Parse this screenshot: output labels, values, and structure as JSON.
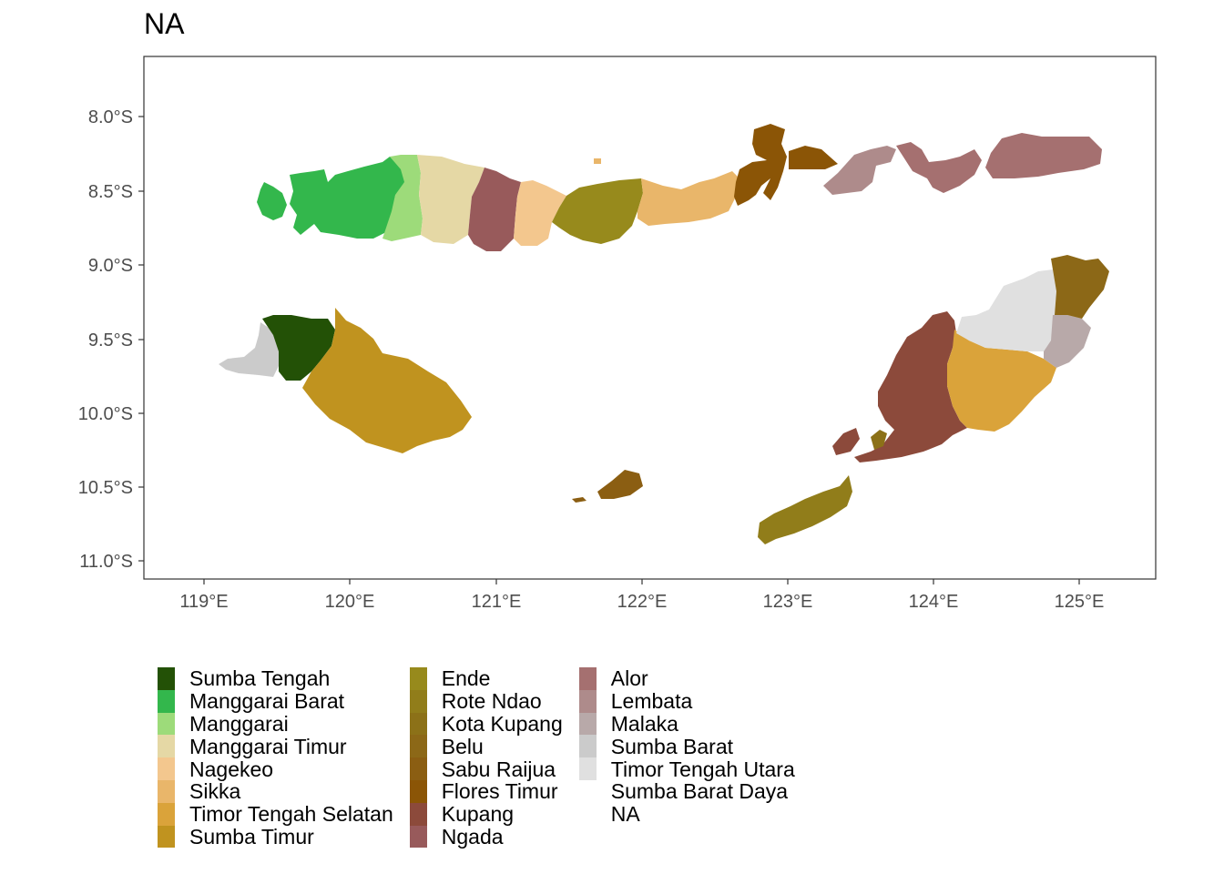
{
  "title": "NA",
  "axes": {
    "x_ticks": [
      "119°E",
      "120°E",
      "121°E",
      "122°E",
      "123°E",
      "124°E",
      "125°E"
    ],
    "y_ticks": [
      "8.0°S",
      "8.5°S",
      "9.0°S",
      "9.5°S",
      "10.0°S",
      "10.5°S",
      "11.0°S"
    ]
  },
  "map": {
    "type": "choropleth",
    "region": "Nusa Tenggara Timur",
    "x_range": [
      118.6,
      125.5
    ],
    "y_range": [
      -11.13,
      -7.6
    ],
    "grid": false
  },
  "legend": {
    "columns": [
      [
        {
          "label": "Sumba Tengah",
          "color": "#235106"
        },
        {
          "label": "Manggarai Barat",
          "color": "#33b74c"
        },
        {
          "label": "Manggarai",
          "color": "#9ddb7a"
        },
        {
          "label": "Manggarai Timur",
          "color": "#e5d8a5"
        },
        {
          "label": "Nagekeo",
          "color": "#f3c78e"
        },
        {
          "label": "Sikka",
          "color": "#e9b66a"
        },
        {
          "label": "Timor Tengah Selatan",
          "color": "#daa33a"
        },
        {
          "label": "Sumba Timur",
          "color": "#c0931f"
        }
      ],
      [
        {
          "label": "Ende",
          "color": "#978a1c"
        },
        {
          "label": "Rote Ndao",
          "color": "#917d1a"
        },
        {
          "label": "Kota Kupang",
          "color": "#8c7118"
        },
        {
          "label": "Belu",
          "color": "#8c6817"
        },
        {
          "label": "Sabu Raijua",
          "color": "#8b5e12"
        },
        {
          "label": "Flores Timur",
          "color": "#8b5506"
        },
        {
          "label": "Kupang",
          "color": "#8c4a3b"
        },
        {
          "label": "Ngada",
          "color": "#985a5b"
        }
      ],
      [
        {
          "label": "Alor",
          "color": "#a57070"
        },
        {
          "label": "Lembata",
          "color": "#ae8b8b"
        },
        {
          "label": "Malaka",
          "color": "#b8a9a9"
        },
        {
          "label": "Sumba Barat",
          "color": "#cbcbcb"
        },
        {
          "label": "Timor Tengah Utara",
          "color": "#e0e0e0"
        },
        {
          "label": "Sumba Barat Daya",
          "color": "#ffffff"
        },
        {
          "label": "NA",
          "color": "#ffffff"
        }
      ]
    ]
  }
}
